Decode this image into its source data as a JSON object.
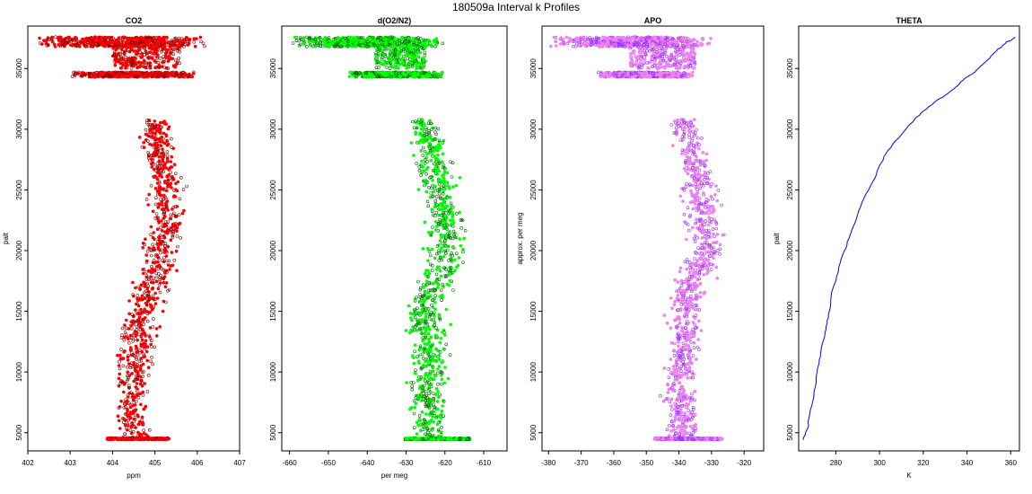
{
  "page": {
    "title": "180509a   Interval k Profiles"
  },
  "chart_data": [
    {
      "type": "scatter",
      "title": "CO2",
      "xlabel": "ppm",
      "ylabel": "palt",
      "xlim": [
        402,
        407
      ],
      "ylim": [
        3500,
        38500
      ],
      "xticks": [
        402,
        403,
        404,
        405,
        406,
        407
      ],
      "yticks": [
        5000,
        10000,
        15000,
        20000,
        25000,
        30000,
        35000
      ],
      "colors": {
        "fill": "#ff0000",
        "edge": "#8b0000"
      },
      "profile": {
        "y": [
          4500,
          5000,
          6000,
          7000,
          8000,
          9000,
          10000,
          11000,
          12000,
          13000,
          14000,
          15000,
          16000,
          17000,
          18000,
          19000,
          20000,
          21000,
          22000,
          23000,
          24000,
          25000,
          26000,
          27000,
          28000,
          29000,
          30000,
          30800
        ],
        "x": [
          404.6,
          404.5,
          404.5,
          404.4,
          404.5,
          404.4,
          404.5,
          404.5,
          404.6,
          404.6,
          404.6,
          404.7,
          404.8,
          404.9,
          405.0,
          405.1,
          405.1,
          405.2,
          405.3,
          405.3,
          405.3,
          405.3,
          405.3,
          405.2,
          405.1,
          405.1,
          405.0,
          405.0
        ],
        "spread": [
          0.35,
          0.35,
          0.35,
          0.4,
          0.4,
          0.4,
          0.42,
          0.42,
          0.42,
          0.45,
          0.45,
          0.45,
          0.45,
          0.45,
          0.45,
          0.45,
          0.45,
          0.45,
          0.45,
          0.45,
          0.45,
          0.45,
          0.42,
          0.42,
          0.4,
          0.4,
          0.35,
          0.3
        ]
      },
      "bands": [
        {
          "y": [
            36800,
            37600
          ],
          "x": [
            402.2,
            406.2
          ]
        },
        {
          "y": [
            35000,
            37000
          ],
          "x": [
            404.0,
            405.6
          ]
        },
        {
          "y": [
            34300,
            34700
          ],
          "x": [
            403.0,
            406.0
          ]
        }
      ]
    },
    {
      "type": "scatter",
      "title": "d(O2/N2)",
      "xlabel": "per meg",
      "ylabel": "",
      "xlim": [
        -662,
        -604
      ],
      "ylim": [
        3500,
        38500
      ],
      "xticks": [
        -660,
        -650,
        -640,
        -630,
        -620,
        -610
      ],
      "yticks": [
        5000,
        10000,
        15000,
        20000,
        25000,
        30000,
        35000
      ],
      "colors": {
        "fill": "#00ff00",
        "edge": "#006400"
      },
      "profile": {
        "y": [
          4500,
          5000,
          6000,
          7000,
          8000,
          9000,
          10000,
          11000,
          12000,
          13000,
          14000,
          15000,
          16000,
          17000,
          18000,
          19000,
          20000,
          21000,
          22000,
          23000,
          24000,
          25000,
          26000,
          27000,
          28000,
          29000,
          30000,
          30800
        ],
        "x": [
          -622,
          -624,
          -624,
          -624,
          -625,
          -625,
          -624,
          -624,
          -624,
          -625,
          -625,
          -625,
          -624,
          -623,
          -621,
          -620,
          -620,
          -619,
          -620,
          -620,
          -621,
          -622,
          -622,
          -623,
          -623,
          -624,
          -625,
          -626
        ],
        "spread": [
          4,
          5,
          5,
          5,
          5,
          5,
          5,
          5,
          5,
          5,
          5,
          5,
          5,
          5,
          5,
          5,
          5,
          5,
          5,
          5,
          5,
          5,
          5,
          5,
          5,
          5,
          4,
          4
        ]
      },
      "bands": [
        {
          "y": [
            36800,
            37600
          ],
          "x": [
            -660,
            -620
          ]
        },
        {
          "y": [
            35000,
            37000
          ],
          "x": [
            -638,
            -625
          ]
        },
        {
          "y": [
            34300,
            34700
          ],
          "x": [
            -645,
            -620
          ]
        }
      ]
    },
    {
      "type": "scatter",
      "title": "APO",
      "xlabel": "",
      "ylabel": "approx. per meg",
      "xlim": [
        -382,
        -314
      ],
      "ylim": [
        3500,
        38500
      ],
      "xticks": [
        -380,
        -370,
        -360,
        -350,
        -340,
        -330,
        -320
      ],
      "yticks": [
        5000,
        10000,
        15000,
        20000,
        25000,
        30000,
        35000
      ],
      "colors": {
        "fill": "#ee82ee",
        "edge": "#9b30ff"
      },
      "profile": {
        "y": [
          4500,
          5000,
          6000,
          7000,
          8000,
          9000,
          10000,
          11000,
          12000,
          13000,
          14000,
          15000,
          16000,
          17000,
          18000,
          19000,
          20000,
          21000,
          22000,
          23000,
          24000,
          25000,
          26000,
          27000,
          28000,
          29000,
          30000,
          30800
        ],
        "x": [
          -337,
          -339,
          -339,
          -339,
          -340,
          -340,
          -339,
          -339,
          -338,
          -338,
          -338,
          -338,
          -337,
          -336,
          -335,
          -333,
          -332,
          -332,
          -332,
          -333,
          -333,
          -334,
          -334,
          -335,
          -336,
          -337,
          -338,
          -339
        ],
        "spread": [
          5,
          5,
          5,
          5,
          5,
          5,
          5,
          5,
          5,
          5,
          6,
          6,
          6,
          6,
          6,
          6,
          6,
          6,
          6,
          6,
          6,
          6,
          5,
          5,
          5,
          5,
          5,
          4
        ]
      },
      "bands": [
        {
          "y": [
            36800,
            37600
          ],
          "x": [
            -380,
            -330
          ]
        },
        {
          "y": [
            35000,
            37000
          ],
          "x": [
            -355,
            -335
          ]
        },
        {
          "y": [
            34300,
            34700
          ],
          "x": [
            -365,
            -335
          ]
        }
      ]
    },
    {
      "type": "line",
      "title": "THETA",
      "xlabel": "K",
      "ylabel": "palt",
      "xlim": [
        263,
        364
      ],
      "ylim": [
        3500,
        38500
      ],
      "xticks": [
        280,
        300,
        320,
        340,
        360
      ],
      "yticks": [
        5000,
        10000,
        15000,
        20000,
        25000,
        30000,
        35000
      ],
      "colors": {
        "line": "#0000ff"
      },
      "series": [
        {
          "x": [
            265,
            267,
            268,
            270,
            271,
            272,
            273,
            275,
            276,
            277,
            278,
            280,
            282,
            284,
            286,
            288,
            290,
            292,
            295,
            298,
            300,
            303,
            307,
            312,
            316,
            320,
            325,
            330,
            335,
            338,
            340,
            342,
            344,
            347,
            350,
            352,
            354,
            356,
            357,
            358,
            360,
            362
          ],
          "y": [
            4400,
            5300,
            6500,
            8000,
            9500,
            10500,
            11500,
            13000,
            14000,
            15000,
            16500,
            17500,
            19000,
            20000,
            21000,
            22000,
            23000,
            24000,
            25000,
            26000,
            27000,
            28000,
            29000,
            30000,
            30800,
            31500,
            32200,
            32800,
            33500,
            34000,
            34300,
            34500,
            34800,
            35300,
            35800,
            36200,
            36600,
            36800,
            37000,
            37200,
            37300,
            37600
          ]
        }
      ]
    }
  ]
}
